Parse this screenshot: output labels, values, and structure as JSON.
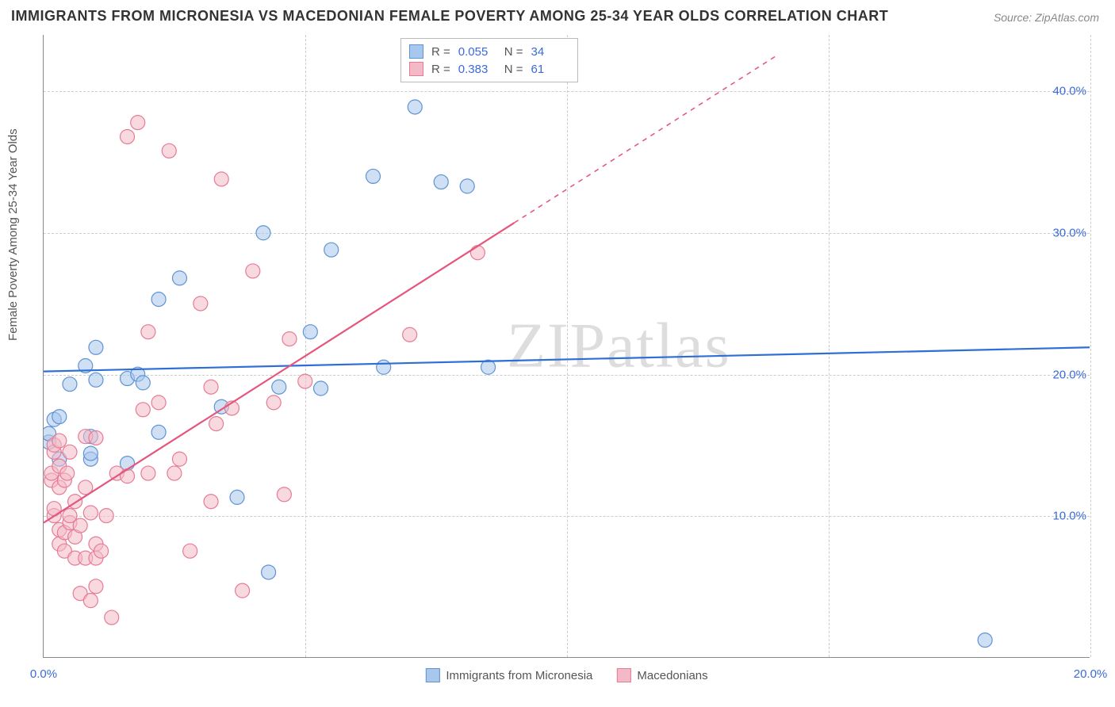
{
  "title": "IMMIGRANTS FROM MICRONESIA VS MACEDONIAN FEMALE POVERTY AMONG 25-34 YEAR OLDS CORRELATION CHART",
  "source": "Source: ZipAtlas.com",
  "y_axis_label": "Female Poverty Among 25-34 Year Olds",
  "watermark": "ZIPatlas",
  "chart": {
    "type": "scatter",
    "xlim": [
      0,
      20
    ],
    "ylim": [
      0,
      44
    ],
    "x_ticks": [
      0,
      5,
      10,
      15,
      20
    ],
    "x_tick_labels": [
      "0.0%",
      "",
      "",
      "",
      "20.0%"
    ],
    "y_ticks": [
      10,
      20,
      30,
      40
    ],
    "y_tick_labels": [
      "10.0%",
      "20.0%",
      "30.0%",
      "40.0%"
    ],
    "grid_color": "#cccccc",
    "background_color": "#ffffff",
    "marker_radius": 9,
    "marker_opacity": 0.55,
    "line_width": 2.2,
    "series": [
      {
        "name": "Immigrants from Micronesia",
        "color_fill": "#a8c7ec",
        "color_stroke": "#5f93d4",
        "line_color": "#2d6fd6",
        "r": "0.055",
        "n": "34",
        "trend": {
          "x1": 0,
          "y1": 20.2,
          "x2": 20,
          "y2": 21.9
        },
        "points": [
          [
            0.1,
            15.2
          ],
          [
            0.1,
            15.8
          ],
          [
            0.2,
            16.8
          ],
          [
            0.3,
            14.0
          ],
          [
            0.3,
            17.0
          ],
          [
            0.5,
            19.3
          ],
          [
            0.8,
            20.6
          ],
          [
            0.9,
            14.0
          ],
          [
            0.9,
            14.4
          ],
          [
            0.9,
            15.6
          ],
          [
            1.0,
            19.6
          ],
          [
            1.0,
            21.9
          ],
          [
            1.6,
            19.7
          ],
          [
            1.6,
            13.7
          ],
          [
            1.8,
            20.0
          ],
          [
            1.9,
            19.4
          ],
          [
            2.2,
            25.3
          ],
          [
            2.2,
            15.9
          ],
          [
            2.6,
            26.8
          ],
          [
            3.4,
            17.7
          ],
          [
            3.7,
            11.3
          ],
          [
            4.2,
            30.0
          ],
          [
            4.3,
            6.0
          ],
          [
            4.5,
            19.1
          ],
          [
            5.1,
            23.0
          ],
          [
            5.3,
            19.0
          ],
          [
            5.5,
            28.8
          ],
          [
            6.3,
            34.0
          ],
          [
            6.5,
            20.5
          ],
          [
            7.1,
            38.9
          ],
          [
            7.6,
            33.6
          ],
          [
            8.1,
            33.3
          ],
          [
            8.5,
            20.5
          ],
          [
            18.0,
            1.2
          ]
        ]
      },
      {
        "name": "Macedonians",
        "color_fill": "#f4b9c6",
        "color_stroke": "#e77b95",
        "line_color": "#e5567d",
        "r": "0.383",
        "n": "61",
        "trend": {
          "x1": 0,
          "y1": 9.5,
          "x2": 14,
          "y2": 42.5
        },
        "trend_dashed_after_x": 9,
        "points": [
          [
            0.15,
            12.5
          ],
          [
            0.15,
            13.0
          ],
          [
            0.2,
            10.0
          ],
          [
            0.2,
            10.5
          ],
          [
            0.2,
            14.5
          ],
          [
            0.2,
            15.0
          ],
          [
            0.3,
            8.0
          ],
          [
            0.3,
            9.0
          ],
          [
            0.3,
            12.0
          ],
          [
            0.3,
            13.5
          ],
          [
            0.3,
            15.3
          ],
          [
            0.4,
            7.5
          ],
          [
            0.4,
            8.8
          ],
          [
            0.4,
            12.5
          ],
          [
            0.45,
            13.0
          ],
          [
            0.5,
            9.5
          ],
          [
            0.5,
            10.0
          ],
          [
            0.5,
            14.5
          ],
          [
            0.6,
            7.0
          ],
          [
            0.6,
            8.5
          ],
          [
            0.6,
            11.0
          ],
          [
            0.7,
            4.5
          ],
          [
            0.7,
            9.3
          ],
          [
            0.8,
            7.0
          ],
          [
            0.8,
            12.0
          ],
          [
            0.8,
            15.6
          ],
          [
            0.9,
            4.0
          ],
          [
            0.9,
            10.2
          ],
          [
            1.0,
            5.0
          ],
          [
            1.0,
            7.0
          ],
          [
            1.0,
            8.0
          ],
          [
            1.0,
            15.5
          ],
          [
            1.1,
            7.5
          ],
          [
            1.2,
            10.0
          ],
          [
            1.3,
            2.8
          ],
          [
            1.4,
            13.0
          ],
          [
            1.6,
            36.8
          ],
          [
            1.6,
            12.8
          ],
          [
            1.8,
            37.8
          ],
          [
            1.9,
            17.5
          ],
          [
            2.0,
            13.0
          ],
          [
            2.0,
            23.0
          ],
          [
            2.2,
            18.0
          ],
          [
            2.4,
            35.8
          ],
          [
            2.5,
            13.0
          ],
          [
            2.6,
            14.0
          ],
          [
            2.8,
            7.5
          ],
          [
            3.0,
            25.0
          ],
          [
            3.2,
            11.0
          ],
          [
            3.2,
            19.1
          ],
          [
            3.3,
            16.5
          ],
          [
            3.4,
            33.8
          ],
          [
            3.6,
            17.6
          ],
          [
            3.8,
            4.7
          ],
          [
            4.0,
            27.3
          ],
          [
            4.4,
            18.0
          ],
          [
            4.6,
            11.5
          ],
          [
            4.7,
            22.5
          ],
          [
            5.0,
            19.5
          ],
          [
            7.0,
            22.8
          ],
          [
            8.3,
            28.6
          ]
        ]
      }
    ]
  },
  "legend_top": {
    "rows": [
      {
        "swatch_fill": "#a8c7ec",
        "swatch_stroke": "#5f93d4",
        "r_label": "R =",
        "r_val": "0.055",
        "n_label": "N =",
        "n_val": "34"
      },
      {
        "swatch_fill": "#f4b9c6",
        "swatch_stroke": "#e77b95",
        "r_label": "R =",
        "r_val": "0.383",
        "n_label": "N =",
        "n_val": "61"
      }
    ]
  },
  "legend_bottom": {
    "items": [
      {
        "swatch_fill": "#a8c7ec",
        "swatch_stroke": "#5f93d4",
        "label": "Immigrants from Micronesia"
      },
      {
        "swatch_fill": "#f4b9c6",
        "swatch_stroke": "#e77b95",
        "label": "Macedonians"
      }
    ]
  }
}
